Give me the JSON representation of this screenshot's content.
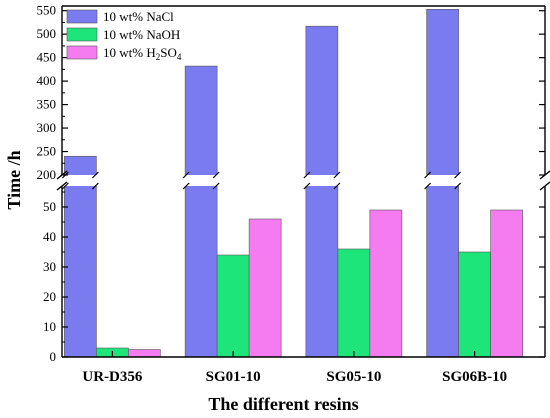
{
  "chart_data": {
    "type": "bar",
    "title": "",
    "xlabel": "The different resins",
    "ylabel": "Time  /h",
    "categories": [
      "UR-D356",
      "SG01-10",
      "SG05-10",
      "SG06B-10"
    ],
    "series": [
      {
        "name": "10 wt% NaCl",
        "name_plain": "10 wt% NaCl",
        "color": "#7b7bf0",
        "values": [
          240,
          432,
          517,
          553
        ]
      },
      {
        "name": "10 wt% NaOH",
        "name_plain": "10 wt% NaOH",
        "color": "#1ee57a",
        "values": [
          3,
          34,
          36,
          35
        ]
      },
      {
        "name": "10 wt% H2SO4",
        "name_plain": "10 wt% H",
        "name_sub": "2",
        "name_rest": "SO",
        "name_sub2": "4",
        "color": "#f57cf0",
        "values": [
          2.5,
          46,
          49,
          49
        ]
      }
    ],
    "axis_break": {
      "lower_range": [
        0,
        57
      ],
      "upper_range": [
        200,
        560
      ]
    },
    "y_ticks_lower": [
      0,
      10,
      20,
      30,
      40,
      50
    ],
    "y_ticks_upper": [
      200,
      250,
      300,
      350,
      400,
      450,
      500,
      550
    ],
    "legend_position": "top-left",
    "grid": false
  }
}
